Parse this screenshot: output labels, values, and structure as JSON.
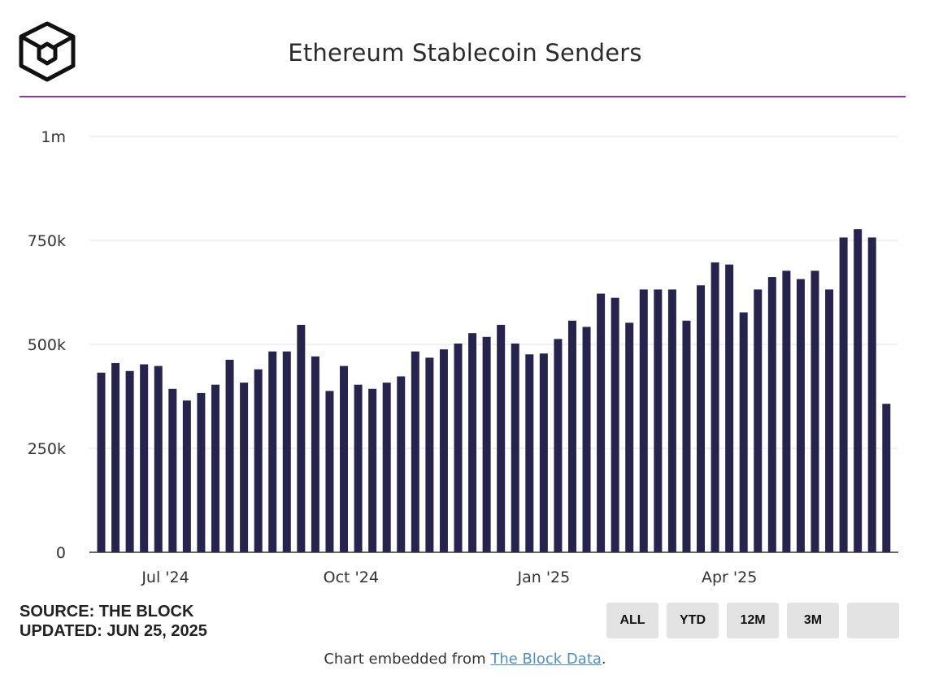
{
  "header": {
    "title": "Ethereum Stablecoin Senders"
  },
  "footer": {
    "source_line": "SOURCE: THE BLOCK",
    "updated_line": "UPDATED: JUN 25, 2025",
    "embed_prefix": "Chart embedded from ",
    "embed_link": "The Block Data",
    "embed_suffix": "."
  },
  "range_buttons": [
    "ALL",
    "YTD",
    "12M",
    "3M",
    ""
  ],
  "colors": {
    "bar": "#27234f",
    "title_rule": "#9b2fae",
    "gridline": "#e6e6e6",
    "link": "#4a90c2"
  },
  "icons": {
    "logo": "the-block-cube-logo"
  },
  "chart_data": {
    "type": "bar",
    "title": "Ethereum Stablecoin Senders",
    "xlabel": "",
    "ylabel": "",
    "ylim": [
      0,
      1000000
    ],
    "y_ticks": [
      {
        "value": 0,
        "label": "0"
      },
      {
        "value": 250000,
        "label": "250k"
      },
      {
        "value": 500000,
        "label": "500k"
      },
      {
        "value": 750000,
        "label": "750k"
      },
      {
        "value": 1000000,
        "label": "1m"
      }
    ],
    "x_ticks": [
      {
        "label": "Jul '24",
        "index": 4.5
      },
      {
        "label": "Oct '24",
        "index": 17.5
      },
      {
        "label": "Jan '25",
        "index": 31
      },
      {
        "label": "Apr '25",
        "index": 44
      }
    ],
    "grid": true,
    "legend": "none",
    "values": [
      432000,
      455000,
      436000,
      452000,
      448000,
      393000,
      365000,
      383000,
      403000,
      463000,
      408000,
      440000,
      483000,
      483000,
      547000,
      471000,
      388000,
      448000,
      403000,
      393000,
      408000,
      423000,
      483000,
      468000,
      488000,
      502000,
      527000,
      518000,
      547000,
      502000,
      476000,
      478000,
      513000,
      557000,
      542000,
      622000,
      612000,
      552000,
      632000,
      632000,
      632000,
      557000,
      642000,
      697000,
      692000,
      577000,
      632000,
      662000,
      677000,
      657000,
      677000,
      632000,
      757000,
      777000,
      757000,
      357000
    ]
  }
}
